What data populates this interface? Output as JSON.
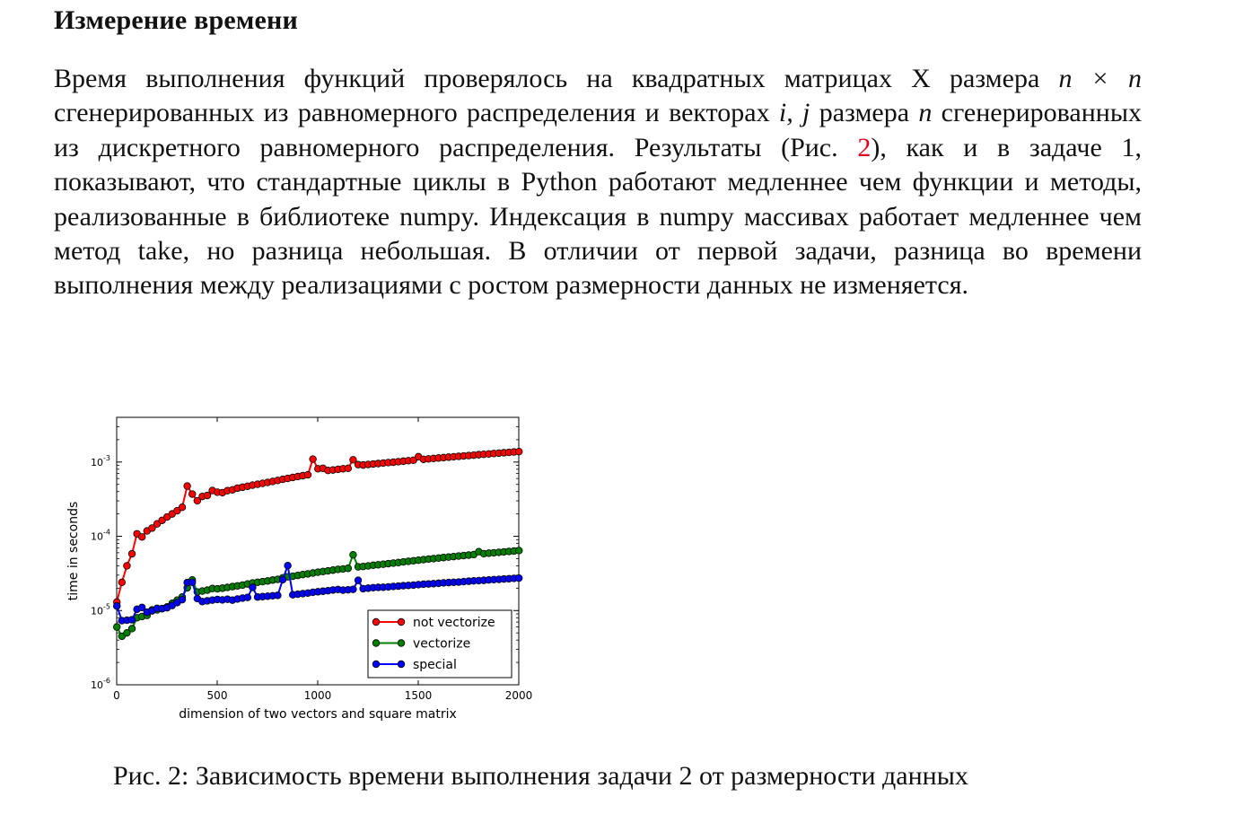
{
  "section": {
    "title": "Измерение времени"
  },
  "paragraph": {
    "p1": "Время выполнения функций проверялось на квадратных матрицах X размера ",
    "m1": "n × n",
    "p2": " сгенерированных из равномерного распределения и векторах ",
    "m2": "i, j",
    "p3": " размера ",
    "m3": "n",
    "p4": " сгенерированных из дискретного равномерного распределения. Результаты (Рис. ",
    "ref": "2",
    "p5": "), как и в задаче 1, показывают, что стандартные циклы в Python работают медленнее чем функции и методы, реализованные в библиотеке numpy. Индексация в numpy массивах работает медленнее чем метод take, но разница небольшая. В отличии от первой задачи, разница во времени выполнения между реализациями с ростом размерности данных не изменяется."
  },
  "figure": {
    "caption": "Рис. 2: Зависимость времени выполнения задачи 2 от размерности данных"
  },
  "chart_data": {
    "type": "line",
    "title": "",
    "xlabel": "dimension of two vectors and square matrix",
    "ylabel": "time in seconds",
    "xlim": [
      0,
      2000
    ],
    "ylim": [
      1e-06,
      0.004
    ],
    "yscale": "log",
    "grid": false,
    "legend_position": "bottom-right",
    "x_ticks": [
      {
        "value": 0,
        "label": "0"
      },
      {
        "value": 500,
        "label": "500"
      },
      {
        "value": 1000,
        "label": "1000"
      },
      {
        "value": 1500,
        "label": "1500"
      },
      {
        "value": 2000,
        "label": "2000"
      }
    ],
    "y_ticks": [
      {
        "value": 1e-06,
        "base": "10",
        "exp": "-6"
      },
      {
        "value": 1e-05,
        "base": "10",
        "exp": "-5"
      },
      {
        "value": 0.0001,
        "base": "10",
        "exp": "-4"
      },
      {
        "value": 0.001,
        "base": "10",
        "exp": "-3"
      }
    ],
    "x": [
      1,
      26,
      51,
      76,
      101,
      126,
      151,
      176,
      201,
      226,
      251,
      276,
      301,
      326,
      351,
      376,
      401,
      426,
      451,
      476,
      501,
      526,
      551,
      576,
      601,
      626,
      651,
      676,
      701,
      726,
      751,
      776,
      801,
      826,
      851,
      876,
      901,
      926,
      951,
      976,
      1001,
      1026,
      1051,
      1076,
      1101,
      1126,
      1151,
      1176,
      1201,
      1226,
      1251,
      1276,
      1301,
      1326,
      1351,
      1376,
      1401,
      1426,
      1451,
      1476,
      1501,
      1526,
      1551,
      1576,
      1601,
      1626,
      1651,
      1676,
      1701,
      1726,
      1751,
      1776,
      1801,
      1826,
      1851,
      1876,
      1901,
      1926,
      1951,
      1976,
      2001
    ],
    "series": [
      {
        "name": "not vectorize",
        "color": "#ff0000",
        "values": [
          1.3e-05,
          2.4e-05,
          4e-05,
          5.8e-05,
          0.000108,
          9.8e-05,
          0.000118,
          0.000129,
          0.000147,
          0.000164,
          0.000182,
          0.0002,
          0.000221,
          0.000246,
          0.000475,
          0.00037,
          0.000301,
          0.000344,
          0.000355,
          0.000413,
          0.000392,
          0.000387,
          0.000412,
          0.000422,
          0.000445,
          0.000458,
          0.000472,
          0.000488,
          0.000502,
          0.000516,
          0.000531,
          0.000548,
          0.000565,
          0.000585,
          0.000602,
          0.00062,
          0.000638,
          0.000655,
          0.000672,
          0.001095,
          0.000812,
          0.000824,
          0.00077,
          0.000782,
          0.000798,
          0.000812,
          0.000823,
          0.001072,
          0.000924,
          0.000912,
          0.000927,
          0.00094,
          0.000954,
          0.000969,
          0.000982,
          0.000995,
          0.00101,
          0.001026,
          0.001042,
          0.001057,
          0.00118,
          0.001088,
          0.001103,
          0.001117,
          0.001132,
          0.001148,
          0.001163,
          0.001178,
          0.001193,
          0.001208,
          0.001222,
          0.001237,
          0.001256,
          0.001271,
          0.001285,
          0.001302,
          0.001318,
          0.001333,
          0.001349,
          0.001366,
          0.001382
        ]
      },
      {
        "name": "vectorize",
        "color": "#008000",
        "values": [
          6e-06,
          4.5e-06,
          5e-06,
          5.7e-06,
          8e-06,
          8.3e-06,
          8.6e-06,
          1.02e-05,
          1.02e-05,
          1.06e-05,
          1.12e-05,
          1.25e-05,
          1.38e-05,
          1.52e-05,
          2.02e-05,
          2.58e-05,
          1.78e-05,
          1.83e-05,
          1.88e-05,
          1.98e-05,
          1.96e-05,
          2e-05,
          2.05e-05,
          2.1e-05,
          2.15e-05,
          2.2e-05,
          2.28e-05,
          2.35e-05,
          2.4e-05,
          2.45e-05,
          2.5e-05,
          2.57e-05,
          2.63e-05,
          2.76e-05,
          2.85e-05,
          2.9e-05,
          2.97e-05,
          3.05e-05,
          3.12e-05,
          3.2e-05,
          3.28e-05,
          3.35e-05,
          3.42e-05,
          3.5e-05,
          3.58e-05,
          3.63e-05,
          3.7e-05,
          5.63e-05,
          3.88e-05,
          3.92e-05,
          3.99e-05,
          4.07e-05,
          4.13e-05,
          4.2e-05,
          4.28e-05,
          4.35e-05,
          4.43e-05,
          4.52e-05,
          4.6e-05,
          4.68e-05,
          4.76e-05,
          4.85e-05,
          4.93e-05,
          5e-05,
          5.09e-05,
          5.17e-05,
          5.25e-05,
          5.33e-05,
          5.42e-05,
          5.5e-05,
          5.58e-05,
          5.67e-05,
          6.2e-05,
          5.83e-05,
          5.92e-05,
          6e-05,
          6.08e-05,
          6.17e-05,
          6.25e-05,
          6.33e-05,
          6.42e-05
        ]
      },
      {
        "name": "special",
        "color": "#0000ff",
        "values": [
          1.15e-05,
          7.3e-06,
          7.4e-06,
          7.5e-06,
          1.04e-05,
          1.1e-05,
          9.5e-06,
          9.9e-06,
          1.07e-05,
          1.06e-05,
          1.09e-05,
          1.17e-05,
          1.28e-05,
          1.4e-05,
          2.38e-05,
          2.4e-05,
          1.45e-05,
          1.32e-05,
          1.35e-05,
          1.38e-05,
          1.41e-05,
          1.39e-05,
          1.42e-05,
          1.38e-05,
          1.43e-05,
          1.47e-05,
          1.5e-05,
          2.05e-05,
          1.52e-05,
          1.54e-05,
          1.56e-05,
          1.58e-05,
          1.6e-05,
          2.6e-05,
          4.03e-05,
          1.63e-05,
          1.66e-05,
          1.69e-05,
          1.72e-05,
          1.76e-05,
          1.79e-05,
          1.82e-05,
          1.85e-05,
          1.89e-05,
          1.92e-05,
          1.88e-05,
          1.9e-05,
          1.93e-05,
          2.55e-05,
          1.97e-05,
          2e-05,
          2.03e-05,
          2.05e-05,
          2.06e-05,
          2.08e-05,
          2.11e-05,
          2.13e-05,
          2.16e-05,
          2.18e-05,
          2.2e-05,
          2.23e-05,
          2.26e-05,
          2.28e-05,
          2.3e-05,
          2.33e-05,
          2.36e-05,
          2.38e-05,
          2.4e-05,
          2.42e-05,
          2.45e-05,
          2.48e-05,
          2.51e-05,
          2.53e-05,
          2.55e-05,
          2.58e-05,
          2.61e-05,
          2.63e-05,
          2.66e-05,
          2.68e-05,
          2.71e-05,
          2.73e-05
        ]
      }
    ]
  }
}
